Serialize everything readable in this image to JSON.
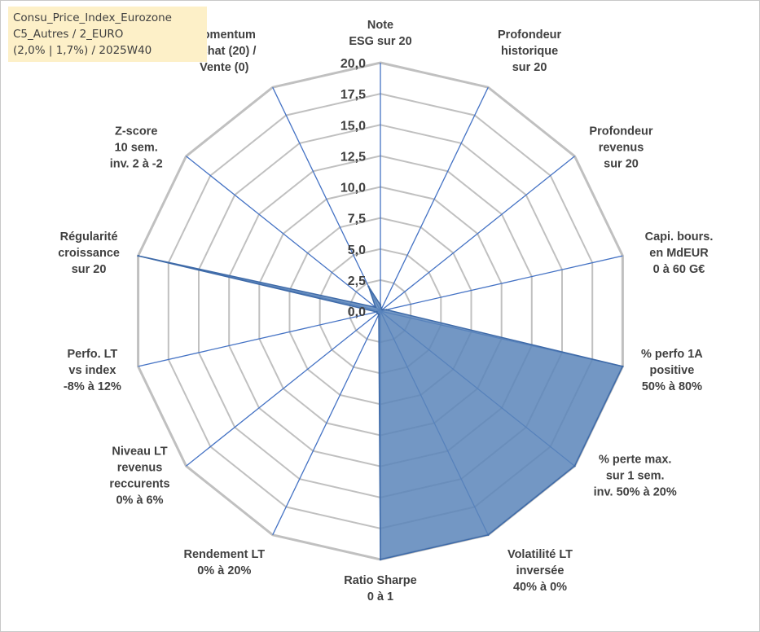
{
  "header": {
    "line1": "Consu_Price_Index_Eurozone",
    "line2": "C5_Autres / 2_EURO",
    "line3": "(2,0% | 1,7%) / 2025W40"
  },
  "colors": {
    "grid": "#c0c0c0",
    "spoke": "#4472c4",
    "fill": "#5b85ba",
    "fill_stroke": "#3e6aa8",
    "header_bg": "#fdf0c8"
  },
  "chart_data": {
    "type": "radar",
    "rmin": 0,
    "rmax": 20,
    "step": 2.5,
    "tick_labels": [
      "0,0",
      "2,5",
      "5,0",
      "7,5",
      "10,0",
      "12,5",
      "15,0",
      "17,5",
      "20,0"
    ],
    "axes": [
      {
        "lines": [
          "Note",
          "ESG sur 20"
        ],
        "value": 0.5
      },
      {
        "lines": [
          "Profondeur",
          "historique",
          "sur 20"
        ],
        "value": 0.2
      },
      {
        "lines": [
          "Profondeur",
          "revenus",
          "sur 20"
        ],
        "value": 0.2
      },
      {
        "lines": [
          "Capi. bours.",
          "en MdEUR",
          "0 à 60 G€"
        ],
        "value": 0.5
      },
      {
        "lines": [
          "% perfo 1A",
          "positive",
          "50% à 80%"
        ],
        "value": 20
      },
      {
        "lines": [
          "% perte max.",
          "sur 1 sem.",
          "inv. 50% à 20%"
        ],
        "value": 20
      },
      {
        "lines": [
          "Volatilité LT",
          "inversée",
          "40% à 0%"
        ],
        "value": 20
      },
      {
        "lines": [
          "Ratio Sharpe",
          "0 à 1"
        ],
        "value": 20
      },
      {
        "lines": [
          "Rendement LT",
          "0% à 20%"
        ],
        "value": 0.3
      },
      {
        "lines": [
          "Niveau LT",
          "revenus",
          "reccurents",
          "0% à 6%"
        ],
        "value": 0.3
      },
      {
        "lines": [
          "Perfo. LT",
          "vs index",
          "-8% à 12%"
        ],
        "value": 0.3
      },
      {
        "lines": [
          "Régularité",
          "croissance",
          "sur 20"
        ],
        "value": 3.8
      },
      {
        "lines": [
          "Régularité",
          "croissance",
          "sur 20"
        ],
        "value": 20
      },
      {
        "lines": [
          "Z-score",
          "10 sem.",
          "inv. 2 à -2"
        ],
        "value": 0.5
      },
      {
        "lines": [
          "Momentum",
          "Achat (20) /",
          "Vente (0)"
        ],
        "value": 2.2
      }
    ]
  }
}
